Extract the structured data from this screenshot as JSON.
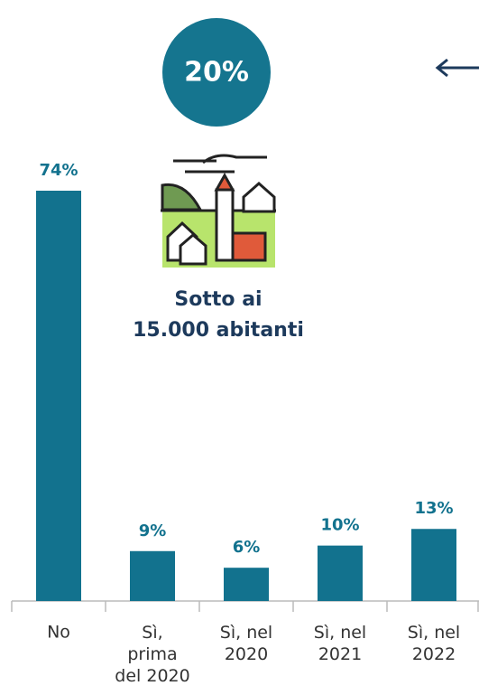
{
  "chart_data": {
    "type": "bar",
    "badge": "20%",
    "annotation": [
      "Sotto ai",
      "15.000 abitanti"
    ],
    "categories": [
      "No",
      "Sì,\nprima\ndel 2020",
      "Sì, nel\n2020",
      "Sì, nel\n2021",
      "Sì, nel\n2022"
    ],
    "values": [
      74,
      9,
      6,
      10,
      13
    ],
    "value_labels": [
      "74%",
      "9%",
      "6%",
      "10%",
      "13%"
    ],
    "color": "#12728e"
  }
}
